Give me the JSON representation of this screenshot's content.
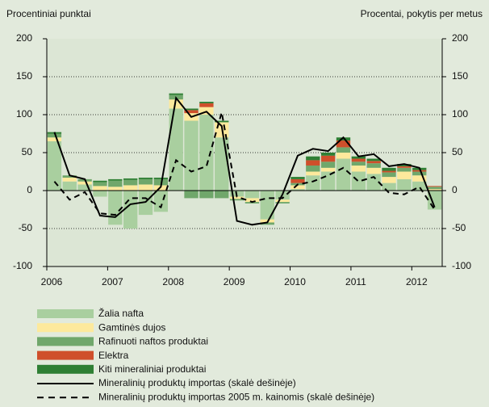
{
  "chart_data": {
    "type": "bar",
    "stacked": true,
    "y_label": "Procentiniai punktai",
    "y2_label": "Procentai, pokytis per metus",
    "x": [
      2006.125,
      2006.375,
      2006.625,
      2006.875,
      2007.125,
      2007.375,
      2007.625,
      2007.875,
      2008.125,
      2008.375,
      2008.625,
      2008.875,
      2009.125,
      2009.375,
      2009.625,
      2009.875,
      2010.125,
      2010.375,
      2010.625,
      2010.875,
      2011.125,
      2011.375,
      2011.625,
      2011.875,
      2012.125,
      2012.375
    ],
    "xlim": [
      2006,
      2012.5
    ],
    "xticks": [
      2006,
      2007,
      2008,
      2009,
      2010,
      2011,
      2012
    ],
    "ylim": [
      -100,
      200
    ],
    "yticks": [
      -100,
      -50,
      0,
      50,
      100,
      150,
      200
    ],
    "y2lim": [
      -100,
      200
    ],
    "y2ticks": [
      -100,
      -50,
      0,
      50,
      100,
      150,
      200
    ],
    "grid": true,
    "series": [
      {
        "name": "Žalia nafta",
        "color": "#a9cf9f",
        "values": [
          65,
          12,
          8,
          -8,
          -45,
          -50,
          -32,
          -28,
          108,
          92,
          100,
          70,
          -8,
          -10,
          -38,
          -12,
          2,
          20,
          25,
          42,
          25,
          22,
          10,
          15,
          12,
          -25
        ]
      },
      {
        "name": "Gamtinės dujos",
        "color": "#fde99c",
        "values": [
          5,
          5,
          4,
          6,
          5,
          7,
          8,
          7,
          12,
          10,
          10,
          20,
          -3,
          -5,
          -4,
          -3,
          5,
          5,
          5,
          8,
          8,
          8,
          8,
          10,
          8,
          2
        ]
      },
      {
        "name": "Rafinuoti naftos produktai",
        "color": "#70a76b",
        "values": [
          5,
          3,
          3,
          5,
          8,
          7,
          7,
          8,
          6,
          -10,
          -10,
          -10,
          -2,
          -2,
          -3,
          -2,
          3,
          8,
          8,
          7,
          5,
          6,
          6,
          5,
          5,
          3
        ]
      },
      {
        "name": "Elektra",
        "color": "#cf4f2b",
        "values": [
          0,
          0,
          0,
          0,
          0,
          0,
          0,
          0,
          0,
          4,
          5,
          0,
          0,
          0,
          0,
          0,
          5,
          7,
          8,
          9,
          4,
          3,
          2,
          2,
          2,
          1
        ]
      },
      {
        "name": "Kiti mineraliniai produktai",
        "color": "#2f7f34",
        "values": [
          2,
          0,
          0,
          2,
          2,
          2,
          2,
          2,
          2,
          2,
          2,
          2,
          0,
          0,
          0,
          0,
          3,
          5,
          4,
          4,
          3,
          3,
          4,
          3,
          3,
          0
        ]
      },
      {
        "name": "Mineralinių produktų importas (skalė dešinėje)",
        "color": "#000000",
        "type": "line",
        "axis": "y2",
        "style": "solid",
        "values": [
          77,
          20,
          15,
          -33,
          -35,
          -18,
          -15,
          5,
          122,
          97,
          104,
          85,
          -40,
          -45,
          -42,
          -5,
          46,
          55,
          52,
          70,
          45,
          48,
          32,
          35,
          30,
          -22
        ]
      },
      {
        "name": "Mineralinių produktų importas 2005 m. kainomis (skalė dešinėje)",
        "color": "#000000",
        "type": "line",
        "axis": "y2",
        "style": "dashed",
        "values": [
          12,
          -12,
          -2,
          -30,
          -32,
          -10,
          -10,
          -22,
          40,
          25,
          32,
          103,
          -8,
          -15,
          -10,
          -10,
          8,
          12,
          20,
          30,
          12,
          18,
          -3,
          -5,
          5,
          -25
        ]
      }
    ]
  }
}
